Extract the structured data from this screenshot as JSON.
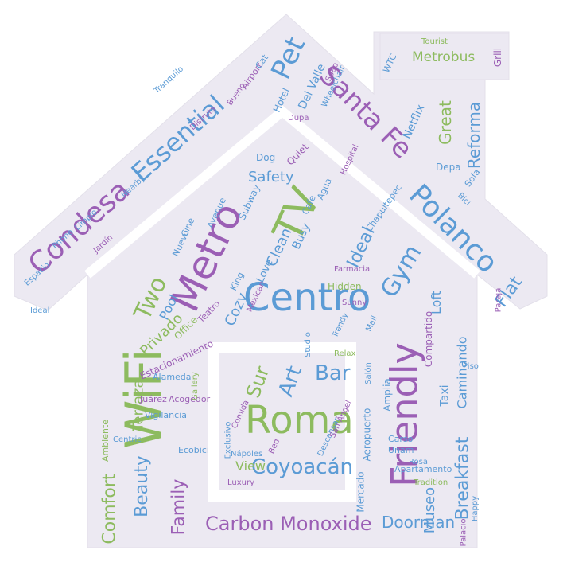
{
  "palette": {
    "blue": "#5b9bd5",
    "green": "#8dbb5f",
    "purple": "#9b5fb5",
    "lightblue": "#7fb0dd",
    "background": "#ffffff",
    "house_fill": "#ece9f2"
  },
  "words": [
    "Friendly",
    "WiFi",
    "Metro",
    "Centro",
    "Roma",
    "TV",
    "Polanco",
    "Santa Fe",
    "Condesa",
    "Essential",
    "Pet",
    "Carbon Monoxide",
    "Metrobus",
    "Coyoacán",
    "Art",
    "Bar",
    "Sur",
    "Gym",
    "Flat",
    "Two",
    "Ideal",
    "Clean",
    "Safety",
    "Beauty",
    "Family",
    "Comfort",
    "Reforma",
    "Great",
    "Breakfast",
    "Doorman",
    "Museo",
    "Privado",
    "Terraza",
    "Caminando",
    "Compartido",
    "Loft",
    "Hidden",
    "Cozy",
    "Pool",
    "Busy",
    "Love",
    "Quiet",
    "Dog",
    "Subway",
    "Netflix",
    "Depa",
    "Sofa",
    "Grill",
    "WTC",
    "Estacionamiento",
    "Aeropuerto",
    "Amplia",
    "Mercado",
    "View",
    "Studio",
    "Taxi",
    "Unam",
    "Apartamento",
    "Chapultepec",
    "Ecobici",
    "Vigilancia",
    "Juárez",
    "Acogedor",
    "Carso",
    "Del Valle",
    "Hotel",
    "Airport",
    "Cat",
    "Cine",
    "Avenue",
    "Nuevo",
    "Bed",
    "Centric",
    "Luxury",
    "Nápoles",
    "Descansar",
    "Tradition",
    "Ambiente",
    "Phone",
    "Office",
    "Teatro",
    "Sunny",
    "Mall",
    "Piso",
    "Relax",
    "Cafe",
    "Agua",
    "Rosa",
    "Mexican",
    "Trendy",
    "Comida",
    "San Ángel",
    "Dupa",
    "Farmacia",
    "Pareja",
    "Tourist",
    "Bueno",
    "Alameda",
    "Gallery",
    "King",
    "Nearby",
    "Espacio",
    "Limpio",
    "Jardín",
    "Bici",
    "Ideal",
    "Wheelchair",
    "Soap",
    "Hospital",
    "Salón",
    "Tranquilo",
    "Disfruta",
    "Happy",
    "Palacio",
    "Exclusivo"
  ]
}
